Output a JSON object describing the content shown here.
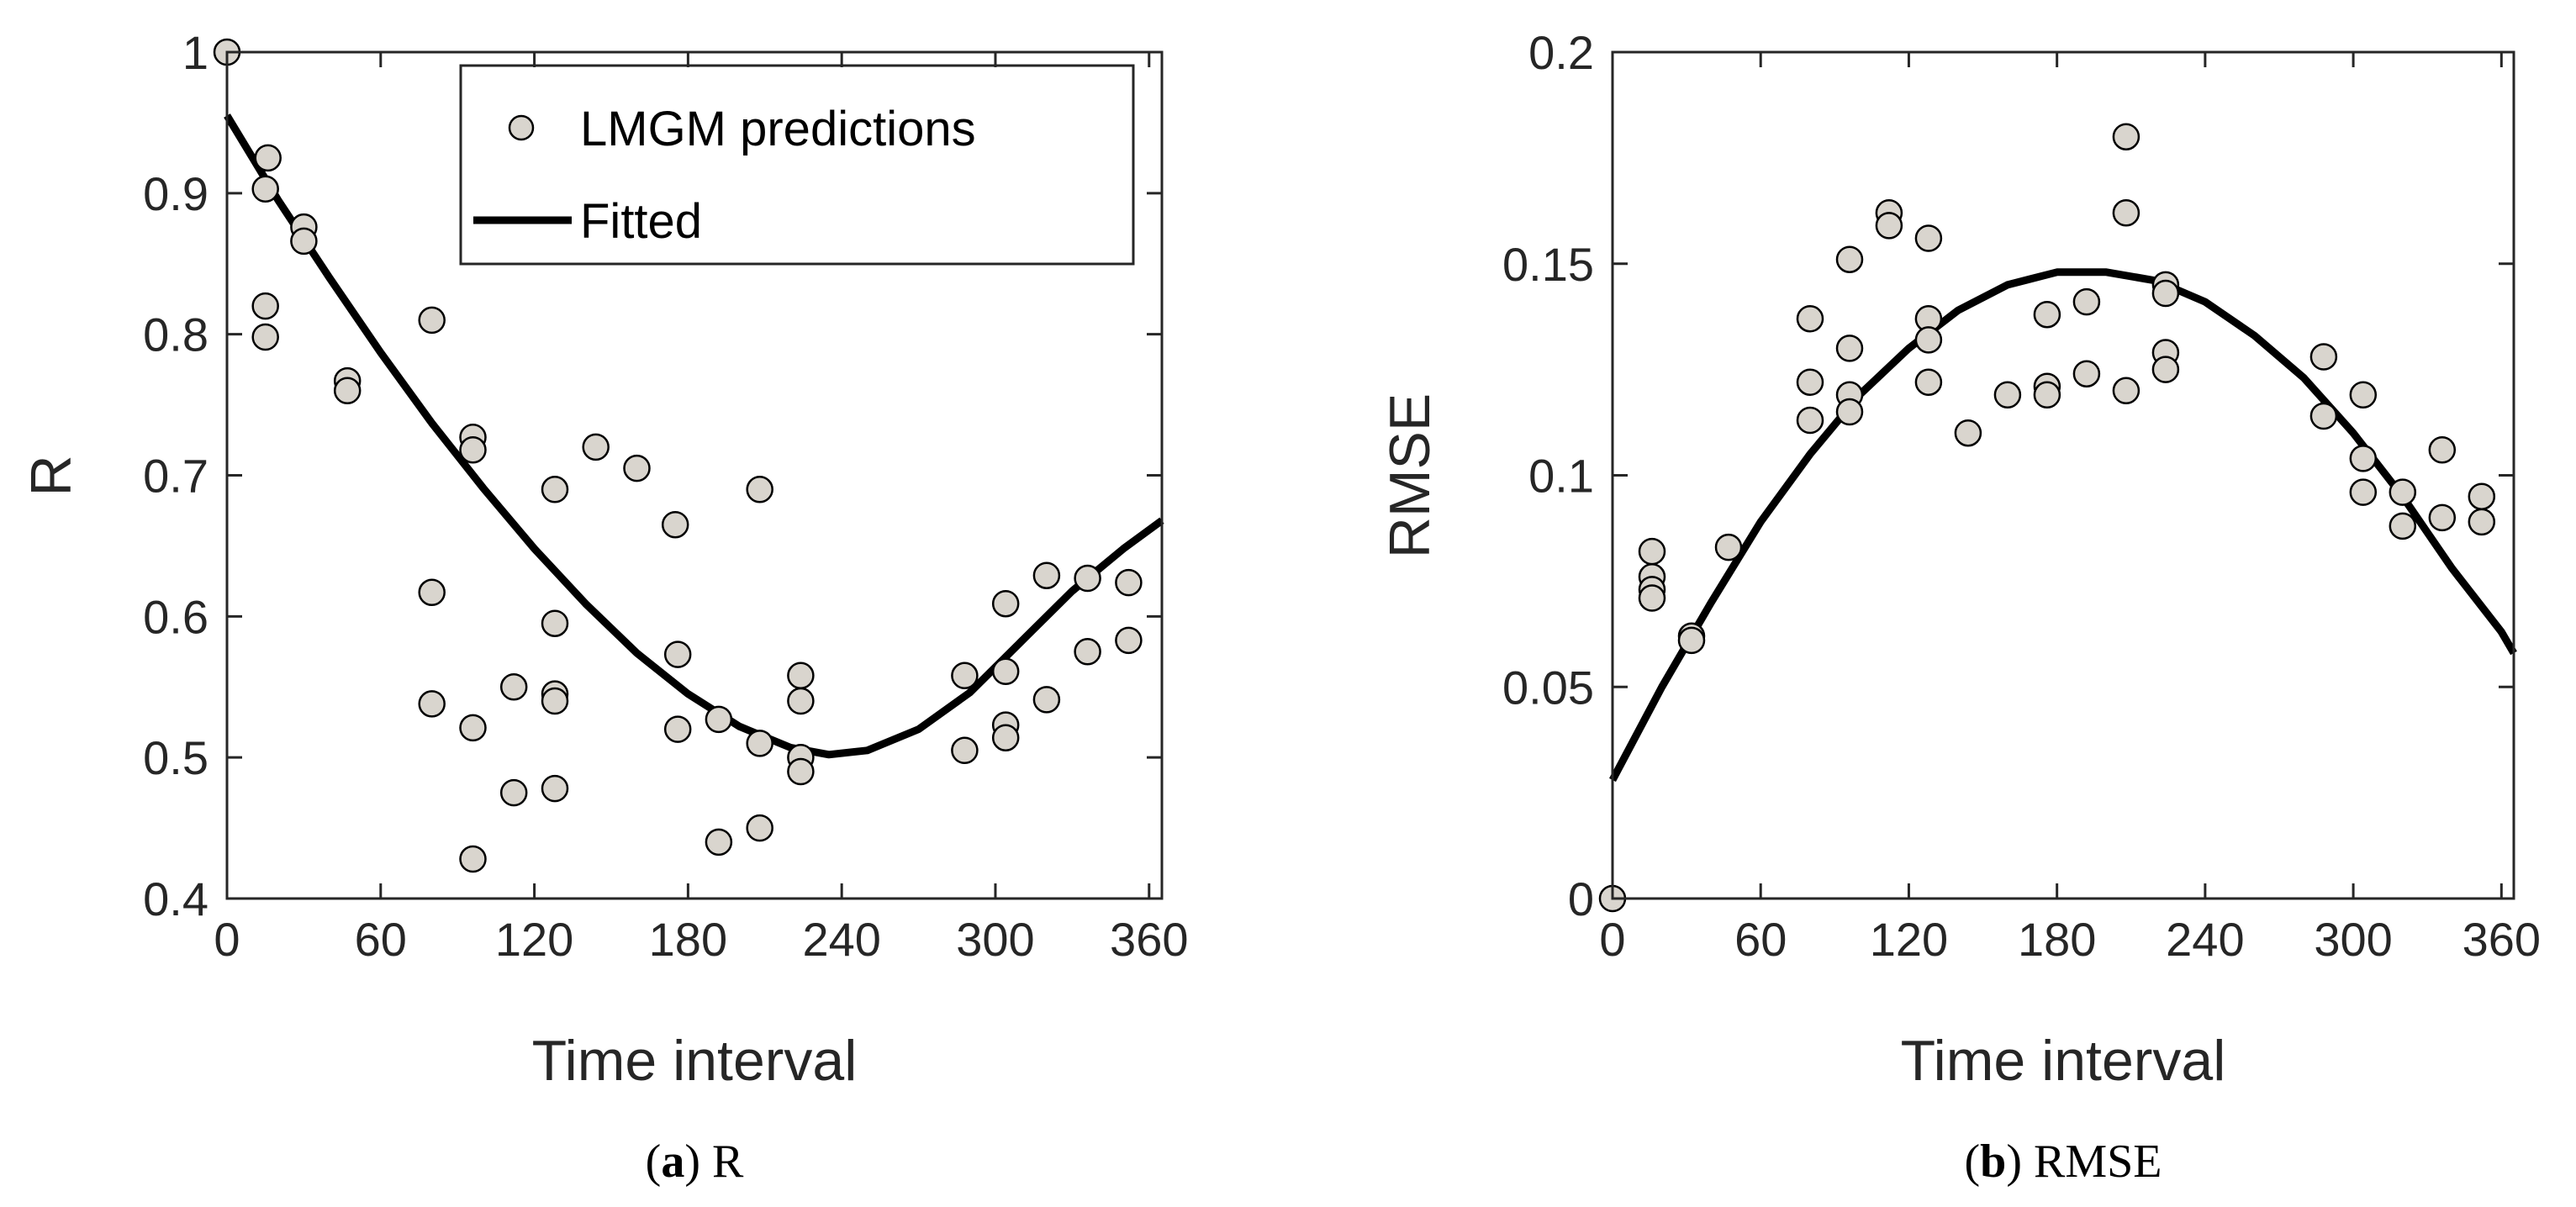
{
  "chart_data": [
    {
      "id": "a",
      "type": "scatter",
      "caption": {
        "label": "a",
        "text": "R"
      },
      "xlabel": "Time interval",
      "ylabel": "R",
      "xlim": [
        0,
        365
      ],
      "ylim": [
        0.4,
        1.0
      ],
      "xticks": [
        0,
        60,
        120,
        180,
        240,
        300,
        360
      ],
      "xtick_labels": [
        "0",
        "60",
        "120",
        "180",
        "240",
        "300",
        "360"
      ],
      "yticks": [
        0.4,
        0.5,
        0.6,
        0.7,
        0.8,
        0.9,
        1.0
      ],
      "ytick_labels": [
        "0.4",
        "0.5",
        "0.6",
        "0.7",
        "0.8",
        "0.9",
        "1"
      ],
      "legend": {
        "position": "top-right",
        "entries": [
          "LMGM predictions",
          "Fitted"
        ]
      },
      "series": [
        {
          "name": "LMGM predictions",
          "kind": "points",
          "x": [
            0,
            15,
            16,
            15,
            15,
            30,
            30,
            47,
            47,
            80,
            80,
            80,
            96,
            96,
            96,
            96,
            112,
            112,
            128,
            128,
            128,
            128,
            128,
            144,
            160,
            175,
            176,
            176,
            192,
            192,
            208,
            208,
            208,
            224,
            224,
            224,
            224,
            288,
            288,
            304,
            304,
            304,
            304,
            320,
            320,
            336,
            336,
            352,
            352
          ],
          "y": [
            1.0,
            0.903,
            0.925,
            0.82,
            0.798,
            0.876,
            0.866,
            0.767,
            0.76,
            0.81,
            0.617,
            0.538,
            0.727,
            0.718,
            0.521,
            0.428,
            0.55,
            0.475,
            0.69,
            0.595,
            0.545,
            0.54,
            0.478,
            0.72,
            0.705,
            0.665,
            0.573,
            0.52,
            0.527,
            0.44,
            0.69,
            0.51,
            0.45,
            0.558,
            0.54,
            0.5,
            0.49,
            0.558,
            0.505,
            0.609,
            0.561,
            0.523,
            0.514,
            0.629,
            0.541,
            0.627,
            0.575,
            0.624,
            0.583
          ]
        },
        {
          "name": "Fitted",
          "kind": "curve",
          "x": [
            0,
            20,
            40,
            60,
            80,
            100,
            120,
            140,
            160,
            180,
            200,
            220,
            235,
            250,
            270,
            290,
            310,
            330,
            350,
            365
          ],
          "y": [
            0.955,
            0.895,
            0.84,
            0.787,
            0.737,
            0.691,
            0.648,
            0.609,
            0.574,
            0.545,
            0.522,
            0.507,
            0.502,
            0.505,
            0.52,
            0.546,
            0.582,
            0.618,
            0.648,
            0.668
          ]
        }
      ]
    },
    {
      "id": "b",
      "type": "scatter",
      "caption": {
        "label": "b",
        "text": "RMSE"
      },
      "xlabel": "Time interval",
      "ylabel": "RMSE",
      "xlim": [
        0,
        365
      ],
      "ylim": [
        0,
        0.2
      ],
      "xticks": [
        0,
        60,
        120,
        180,
        240,
        300,
        360
      ],
      "xtick_labels": [
        "0",
        "60",
        "120",
        "180",
        "240",
        "300",
        "360"
      ],
      "yticks": [
        0,
        0.05,
        0.1,
        0.15,
        0.2
      ],
      "ytick_labels": [
        "0",
        "0.05",
        "0.1",
        "0.15",
        "0.2"
      ],
      "legend": null,
      "series": [
        {
          "name": "LMGM predictions",
          "kind": "points",
          "x": [
            0,
            16,
            16,
            16,
            16,
            32,
            32,
            47,
            80,
            80,
            80,
            96,
            96,
            96,
            96,
            112,
            112,
            128,
            128,
            128,
            128,
            144,
            160,
            176,
            176,
            176,
            192,
            192,
            208,
            208,
            208,
            224,
            224,
            224,
            224,
            288,
            288,
            304,
            304,
            304,
            320,
            320,
            336,
            336,
            352,
            352
          ],
          "y": [
            0.0,
            0.082,
            0.076,
            0.073,
            0.071,
            0.062,
            0.061,
            0.083,
            0.137,
            0.122,
            0.113,
            0.151,
            0.13,
            0.119,
            0.115,
            0.162,
            0.159,
            0.156,
            0.137,
            0.132,
            0.122,
            0.11,
            0.119,
            0.138,
            0.121,
            0.119,
            0.141,
            0.124,
            0.18,
            0.162,
            0.12,
            0.145,
            0.143,
            0.129,
            0.125,
            0.128,
            0.114,
            0.119,
            0.104,
            0.096,
            0.096,
            0.088,
            0.106,
            0.09,
            0.095,
            0.089
          ]
        },
        {
          "name": "Fitted",
          "kind": "curve",
          "x": [
            0,
            20,
            40,
            60,
            80,
            100,
            120,
            140,
            160,
            180,
            200,
            220,
            240,
            260,
            280,
            300,
            320,
            340,
            360,
            365
          ],
          "y": [
            0.028,
            0.05,
            0.07,
            0.089,
            0.105,
            0.119,
            0.13,
            0.139,
            0.145,
            0.148,
            0.148,
            0.146,
            0.141,
            0.133,
            0.123,
            0.11,
            0.095,
            0.078,
            0.063,
            0.058
          ]
        }
      ]
    }
  ]
}
